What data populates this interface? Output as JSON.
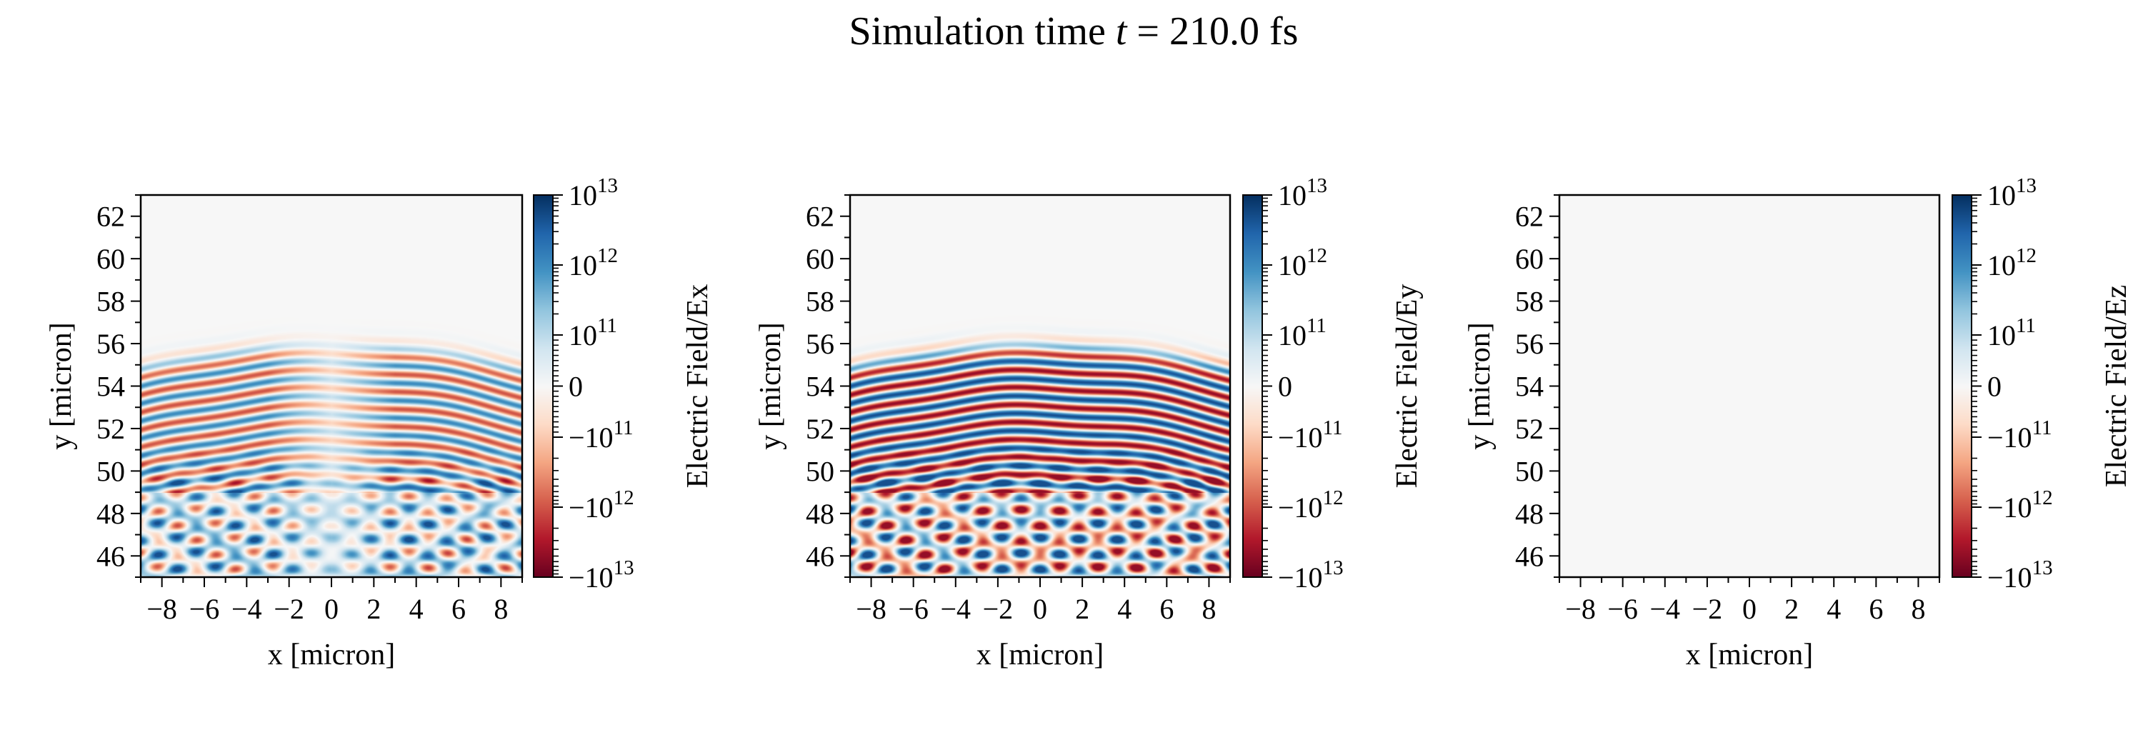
{
  "title": {
    "prefix": "Simulation time ",
    "var": "t",
    "suffix": " = 210.0 fs"
  },
  "chart_data": [
    {
      "type": "heatmap",
      "xlabel": "x [micron]",
      "ylabel": "y [micron]",
      "colorbar_label": "Electric Field/Ex",
      "xlim": [
        -9,
        9
      ],
      "ylim": [
        45,
        63
      ],
      "xticks": [
        -8,
        -6,
        -4,
        -2,
        0,
        2,
        4,
        6,
        8
      ],
      "yticks": [
        46,
        48,
        50,
        52,
        54,
        56,
        58,
        60,
        62
      ],
      "colormap": "RdBu",
      "color_scale": "symlog",
      "field_active": true,
      "field_strength": "moderate"
    },
    {
      "type": "heatmap",
      "xlabel": "x [micron]",
      "ylabel": "y [micron]",
      "colorbar_label": "Electric Field/Ey",
      "xlim": [
        -9,
        9
      ],
      "ylim": [
        45,
        63
      ],
      "xticks": [
        -8,
        -6,
        -4,
        -2,
        0,
        2,
        4,
        6,
        8
      ],
      "yticks": [
        46,
        48,
        50,
        52,
        54,
        56,
        58,
        60,
        62
      ],
      "colormap": "RdBu",
      "color_scale": "symlog",
      "field_active": true,
      "field_strength": "strong"
    },
    {
      "type": "heatmap",
      "xlabel": "x [micron]",
      "ylabel": "y [micron]",
      "colorbar_label": "Electric Field/Ez",
      "xlim": [
        -9,
        9
      ],
      "ylim": [
        45,
        63
      ],
      "xticks": [
        -8,
        -6,
        -4,
        -2,
        0,
        2,
        4,
        6,
        8
      ],
      "yticks": [
        46,
        48,
        50,
        52,
        54,
        56,
        58,
        60,
        62
      ],
      "colormap": "RdBu",
      "color_scale": "symlog",
      "field_active": false,
      "field_strength": "zero"
    }
  ],
  "colorbar": {
    "range": [
      -10000000000000.0,
      10000000000000.0
    ],
    "linthresh": 100000000000.0,
    "ticks": [
      {
        "value": 10000000000000.0,
        "base": "10",
        "exp": "13"
      },
      {
        "value": 1000000000000.0,
        "base": "10",
        "exp": "12"
      },
      {
        "value": 100000000000.0,
        "base": "10",
        "exp": "11"
      },
      {
        "value": 0,
        "base": "0",
        "exp": ""
      },
      {
        "value": -100000000000.0,
        "base": "−10",
        "exp": "11"
      },
      {
        "value": -1000000000000.0,
        "base": "−10",
        "exp": "12"
      },
      {
        "value": -10000000000000.0,
        "base": "−10",
        "exp": "13"
      }
    ],
    "colors": [
      "#67001f",
      "#b2182b",
      "#d6604d",
      "#f4a582",
      "#fddbc7",
      "#f7f7f7",
      "#d1e5f0",
      "#92c5de",
      "#4393c3",
      "#2166ac",
      "#053061"
    ]
  }
}
